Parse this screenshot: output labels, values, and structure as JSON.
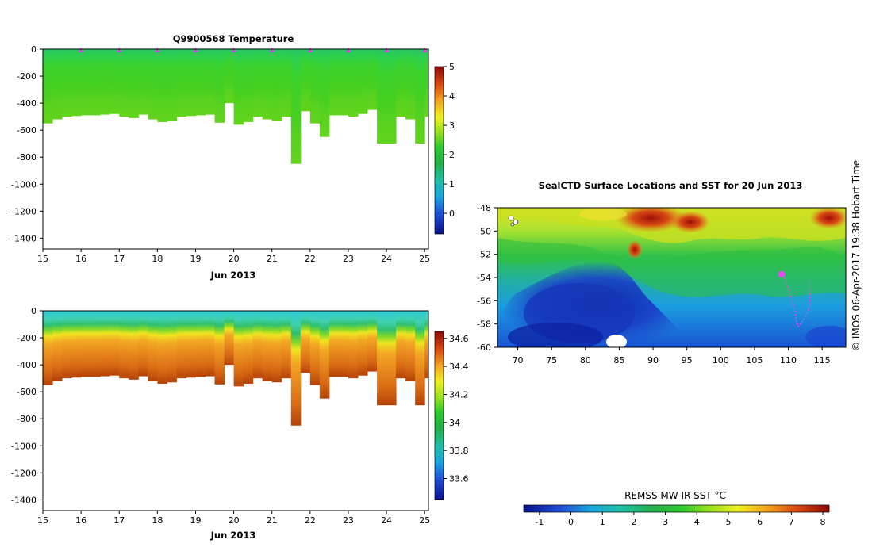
{
  "colors": {
    "plot_border": "#000000",
    "argo_marker": "#e040e0",
    "land_fill": "#ffffff",
    "track_color": "#ff40ff"
  },
  "chart_data": [
    {
      "id": "temperature-section",
      "type": "heatmap",
      "title": "Q9900568  Temperature",
      "xlabel": "Jun 2013",
      "ylabel": "",
      "xlim": [
        15,
        25.1
      ],
      "ylim": [
        -1480,
        0
      ],
      "x_ticks": [
        "15",
        "16",
        "17",
        "18",
        "19",
        "20",
        "21",
        "22",
        "23",
        "24",
        "25"
      ],
      "y_ticks": [
        "0",
        "-200",
        "-400",
        "-600",
        "-800",
        "-1000",
        "-1200",
        "-1400"
      ],
      "colorbar": {
        "range": [
          -0.7,
          5
        ],
        "ticks": [
          "0",
          "1",
          "2",
          "3",
          "4",
          "5"
        ]
      },
      "profile_days": [
        15.0,
        15.25,
        15.5,
        15.75,
        16.0,
        16.25,
        16.5,
        16.75,
        17.0,
        17.25,
        17.5,
        17.75,
        18.0,
        18.25,
        18.5,
        18.75,
        19.0,
        19.25,
        19.5,
        19.75,
        20.0,
        20.25,
        20.5,
        20.75,
        21.0,
        21.25,
        21.5,
        21.75,
        22.0,
        22.25,
        22.5,
        22.75,
        23.0,
        23.25,
        23.5,
        23.75,
        24.0,
        24.25,
        24.5,
        24.75,
        25.0
      ],
      "max_depth": [
        550,
        520,
        500,
        495,
        490,
        490,
        485,
        480,
        500,
        510,
        485,
        520,
        540,
        530,
        500,
        495,
        490,
        485,
        545,
        400,
        560,
        540,
        500,
        520,
        530,
        500,
        850,
        460,
        550,
        650,
        490,
        490,
        500,
        480,
        450,
        700,
        700,
        500,
        520,
        700,
        500
      ],
      "surface_marker_days": [
        16,
        17,
        18,
        19,
        20,
        21,
        22,
        23,
        24,
        25
      ]
    },
    {
      "id": "salinity-section",
      "type": "heatmap",
      "title": "",
      "xlabel": "Jun 2013",
      "ylabel": "",
      "xlim": [
        15,
        25.1
      ],
      "ylim": [
        -1480,
        0
      ],
      "x_ticks": [
        "15",
        "16",
        "17",
        "18",
        "19",
        "20",
        "21",
        "22",
        "23",
        "24",
        "25"
      ],
      "y_ticks": [
        "0",
        "-200",
        "-400",
        "-600",
        "-800",
        "-1000",
        "-1200",
        "-1400"
      ],
      "colorbar": {
        "range": [
          33.45,
          34.65
        ],
        "ticks": [
          "33.6",
          "33.8",
          "34",
          "34.2",
          "34.4",
          "34.6"
        ]
      },
      "profile_days": [
        15.0,
        15.25,
        15.5,
        15.75,
        16.0,
        16.25,
        16.5,
        16.75,
        17.0,
        17.25,
        17.5,
        17.75,
        18.0,
        18.25,
        18.5,
        18.75,
        19.0,
        19.25,
        19.5,
        19.75,
        20.0,
        20.25,
        20.5,
        20.75,
        21.0,
        21.25,
        21.5,
        21.75,
        22.0,
        22.25,
        22.5,
        22.75,
        23.0,
        23.25,
        23.5,
        23.75,
        24.0,
        24.25,
        24.5,
        24.75,
        25.0
      ],
      "max_depth": [
        550,
        520,
        500,
        495,
        490,
        490,
        485,
        480,
        500,
        510,
        485,
        520,
        540,
        530,
        500,
        495,
        490,
        485,
        545,
        400,
        560,
        540,
        500,
        520,
        530,
        500,
        850,
        460,
        550,
        650,
        490,
        490,
        500,
        480,
        450,
        700,
        700,
        500,
        520,
        700,
        500
      ]
    },
    {
      "id": "sst-map",
      "type": "heatmap",
      "title": "SealCTD Surface Locations and SST for 20 Jun 2013",
      "xlabel": "",
      "ylabel": "",
      "xlim": [
        67,
        118.5
      ],
      "ylim": [
        -60,
        -48
      ],
      "x_ticks": [
        "70",
        "75",
        "80",
        "85",
        "90",
        "95",
        "100",
        "105",
        "110",
        "115"
      ],
      "y_ticks": [
        "-48",
        "-50",
        "-52",
        "-54",
        "-56",
        "-58",
        "-60"
      ],
      "colorbar": {
        "label": "REMSS MW-IR SST °C",
        "range": [
          -1.5,
          8.2
        ],
        "ticks": [
          "-1",
          "0",
          "1",
          "2",
          "3",
          "4",
          "5",
          "6",
          "7",
          "8"
        ]
      }
    }
  ],
  "side_label": "© IMOS 06-Apr-2017 19:38 Hobart Time"
}
